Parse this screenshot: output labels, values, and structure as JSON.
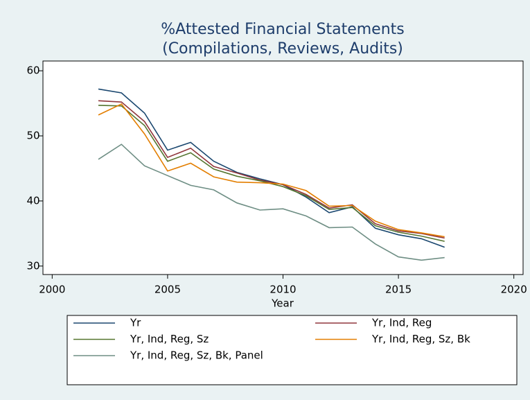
{
  "chart_data": {
    "type": "line",
    "title": [
      "%Attested Financial Statements",
      "(Compilations, Reviews, Audits)"
    ],
    "x_label": "Year",
    "x": [
      2002,
      2003,
      2004,
      2005,
      2006,
      2007,
      2008,
      2009,
      2010,
      2011,
      2012,
      2013,
      2014,
      2015,
      2016,
      2017
    ],
    "series": [
      {
        "name": "Yr",
        "color": "#1a476f",
        "values": [
          57.2,
          56.6,
          53.5,
          47.8,
          49.0,
          46.1,
          44.4,
          43.4,
          42.5,
          40.6,
          38.2,
          39.1,
          35.8,
          34.8,
          34.2,
          32.9
        ]
      },
      {
        "name": "Yr, Ind, Reg",
        "color": "#90353b",
        "values": [
          55.4,
          55.2,
          52.2,
          46.7,
          48.1,
          45.3,
          44.3,
          43.2,
          42.5,
          41.0,
          38.9,
          39.4,
          36.5,
          35.4,
          35.0,
          34.3
        ]
      },
      {
        "name": "Yr, Ind, Reg, Sz",
        "color": "#55752f",
        "values": [
          54.7,
          54.6,
          51.6,
          46.1,
          47.4,
          44.9,
          43.8,
          43.1,
          42.2,
          40.8,
          38.7,
          39.0,
          36.2,
          35.2,
          34.6,
          33.8
        ]
      },
      {
        "name": "Yr, Ind, Reg, Sz, Bk",
        "color": "#e37e00",
        "values": [
          53.2,
          54.9,
          50.3,
          44.6,
          45.8,
          43.7,
          42.9,
          42.8,
          42.6,
          41.6,
          39.2,
          39.3,
          36.9,
          35.6,
          35.1,
          34.5
        ]
      },
      {
        "name": "Yr, Ind, Reg, Sz, Bk, Panel",
        "color": "#6e8e84",
        "values": [
          46.4,
          48.7,
          45.4,
          43.9,
          42.4,
          41.7,
          39.7,
          38.6,
          38.8,
          37.7,
          35.9,
          36.0,
          33.4,
          31.4,
          30.9,
          31.3
        ]
      }
    ],
    "xlim": [
      1999.6,
      2020.4
    ],
    "xticks": [
      2000,
      2005,
      2010,
      2015,
      2020
    ],
    "ylim": [
      28.7,
      61.5
    ],
    "yticks": [
      30,
      40,
      50,
      60
    ],
    "grid": false,
    "legend": "bottom"
  }
}
